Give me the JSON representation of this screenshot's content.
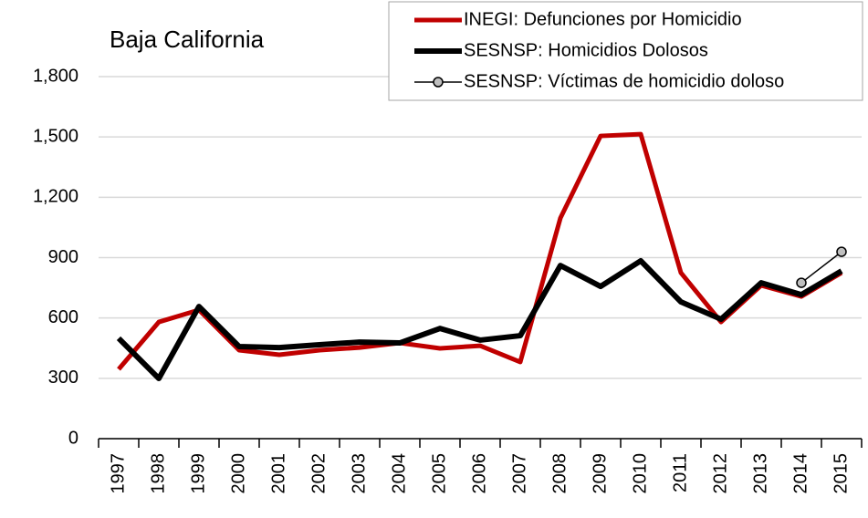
{
  "chart_data": {
    "type": "line",
    "title": "Baja California",
    "categories": [
      "1997",
      "1998",
      "1999",
      "2000",
      "2001",
      "2002",
      "2003",
      "2004",
      "2005",
      "2006",
      "2007",
      "2008",
      "2009",
      "2010",
      "2011",
      "2012",
      "2013",
      "2014",
      "2015"
    ],
    "series": [
      {
        "name": "INEGI: Defunciones por Homicidio",
        "color": "#c00000",
        "values": [
          345,
          580,
          640,
          440,
          417,
          440,
          453,
          476,
          449,
          462,
          381,
          1097,
          1505,
          1514,
          825,
          580,
          762,
          707,
          825
        ]
      },
      {
        "name": "SESNSP: Homicidios Dolosos",
        "color": "#000000",
        "values": [
          499,
          299,
          657,
          458,
          453,
          467,
          480,
          476,
          548,
          490,
          512,
          861,
          757,
          884,
          680,
          594,
          775,
          716,
          834
        ]
      },
      {
        "name": "SESNSP: Víctimas de homicidio doloso",
        "color": "#000000",
        "marker": "#bfbfbf",
        "values": [
          null,
          null,
          null,
          null,
          null,
          null,
          null,
          null,
          null,
          null,
          null,
          null,
          null,
          null,
          null,
          null,
          null,
          775,
          929
        ]
      }
    ],
    "ylim": [
      0,
      1800
    ],
    "yticks": [
      0,
      300,
      600,
      900,
      {
        "value": 1200,
        "label": "1,200"
      },
      {
        "value": 1500,
        "label": "1,500"
      },
      {
        "value": 1800,
        "label": "1,800"
      }
    ],
    "grid": true,
    "legend": "top-right"
  }
}
